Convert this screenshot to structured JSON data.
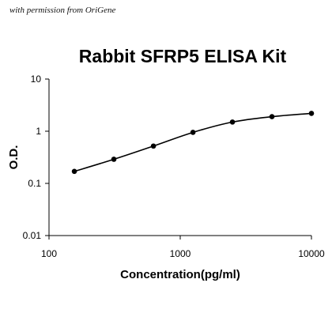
{
  "watermark": "with permission from OriGene",
  "chart_data": {
    "type": "line",
    "title": "Rabbit SFRP5 ELISA Kit",
    "xlabel": "Concentration(pg/ml)",
    "ylabel": "O.D.",
    "xscale": "log",
    "yscale": "log",
    "xlim": [
      100,
      10000
    ],
    "ylim": [
      0.01,
      10
    ],
    "xticks": [
      "100",
      "1000",
      "10000"
    ],
    "yticks": [
      "0.01",
      "0.1",
      "1",
      "10"
    ],
    "grid": false,
    "series": [
      {
        "x": [
          156,
          312,
          625,
          1250,
          2500,
          5000,
          10000
        ],
        "y": [
          0.17,
          0.29,
          0.52,
          0.95,
          1.5,
          1.9,
          2.2
        ]
      }
    ],
    "color": "#000000"
  }
}
